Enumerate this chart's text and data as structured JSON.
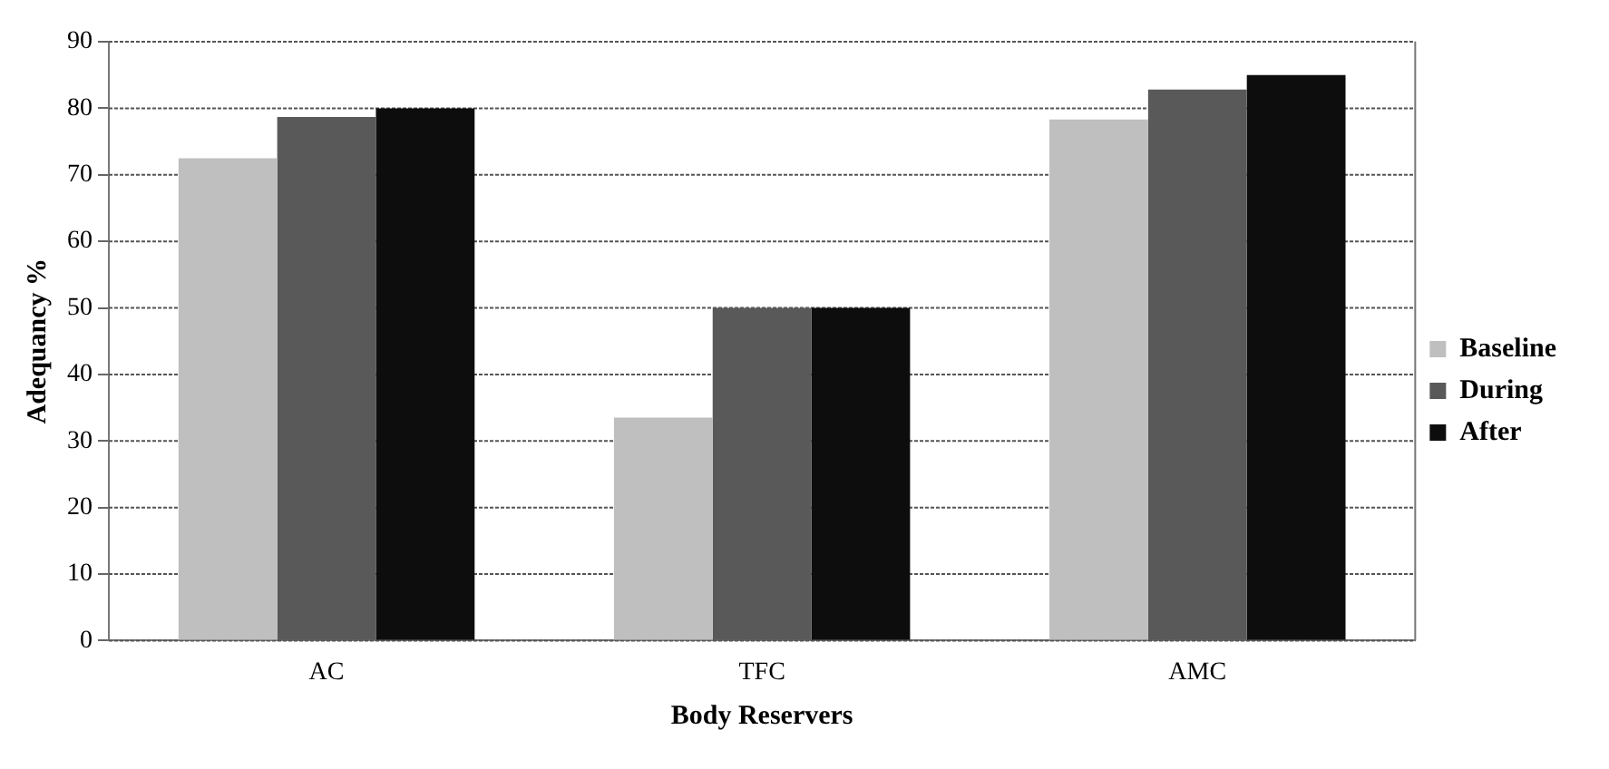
{
  "chart_data": {
    "type": "bar",
    "xlabel": "Body Reservers",
    "ylabel": "Adequancy %",
    "categories": [
      "AC",
      "TFC",
      "AMC"
    ],
    "series": [
      {
        "name": "Baseline",
        "color": "#bfbfbf",
        "values": [
          72.5,
          33.5,
          78.3
        ]
      },
      {
        "name": "During",
        "color": "#595959",
        "values": [
          78.7,
          50,
          82.8
        ]
      },
      {
        "name": "After",
        "color": "#0d0d0d",
        "values": [
          80,
          50,
          85
        ]
      }
    ],
    "ylim": [
      0,
      90
    ],
    "yticks": [
      0,
      10,
      20,
      30,
      40,
      50,
      60,
      70,
      80,
      90
    ],
    "grid": "y",
    "legend": "right"
  }
}
